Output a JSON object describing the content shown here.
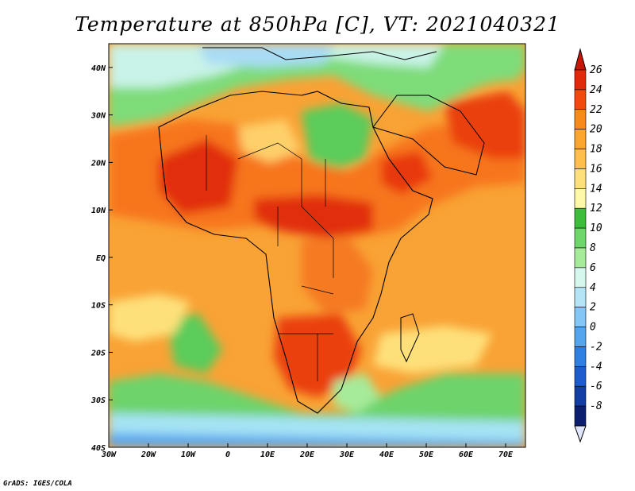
{
  "title": "Temperature at 850hPa [C], VT: 2021040321",
  "credit": "GrADS: IGES/COLA",
  "map": {
    "lon_range": [
      -30,
      75
    ],
    "lat_range": [
      -40,
      45
    ],
    "lon_ticks": [
      {
        "value": -30,
        "label": "30W"
      },
      {
        "value": -20,
        "label": "20W"
      },
      {
        "value": -10,
        "label": "10W"
      },
      {
        "value": 0,
        "label": "0"
      },
      {
        "value": 10,
        "label": "10E"
      },
      {
        "value": 20,
        "label": "20E"
      },
      {
        "value": 30,
        "label": "30E"
      },
      {
        "value": 40,
        "label": "40E"
      },
      {
        "value": 50,
        "label": "50E"
      },
      {
        "value": 60,
        "label": "60E"
      },
      {
        "value": 70,
        "label": "70E"
      }
    ],
    "lat_ticks": [
      {
        "value": 40,
        "label": "40N"
      },
      {
        "value": 30,
        "label": "30N"
      },
      {
        "value": 20,
        "label": "20N"
      },
      {
        "value": 10,
        "label": "10N"
      },
      {
        "value": 0,
        "label": "EQ"
      },
      {
        "value": -10,
        "label": "10S"
      },
      {
        "value": -20,
        "label": "20S"
      },
      {
        "value": -30,
        "label": "30S"
      },
      {
        "value": -40,
        "label": "40S"
      }
    ]
  },
  "colorbar": {
    "levels": [
      "26",
      "24",
      "22",
      "20",
      "18",
      "16",
      "14",
      "12",
      "10",
      "8",
      "6",
      "4",
      "2",
      "0",
      "-2",
      "-4",
      "-6",
      "-8"
    ],
    "colors": [
      "#e02a0c",
      "#f2490d",
      "#f88a19",
      "#fba42e",
      "#fec04a",
      "#fee07a",
      "#fdf7a8",
      "#3cbd3c",
      "#6fd66b",
      "#a6eb9a",
      "#d6f7ee",
      "#b5e4f7",
      "#84c6f5",
      "#55a5ee",
      "#2f7fe2",
      "#1c5ccc",
      "#123ea4",
      "#0c1f6e"
    ],
    "top_arrow_color": "#c81606",
    "bottom_arrow_color": "#e0e6fb"
  }
}
